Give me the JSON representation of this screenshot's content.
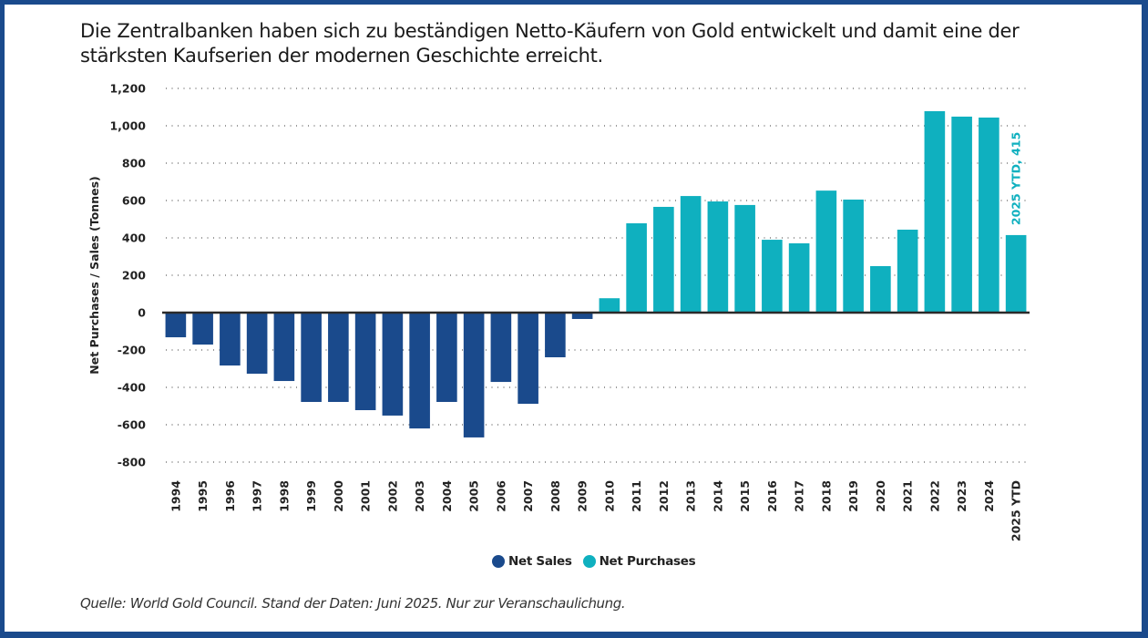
{
  "title": "Die Zentralbanken haben sich zu beständigen Netto-Käufern von Gold entwickelt und damit eine der stärksten Kaufserien der modernen Geschichte erreicht.",
  "source": "Quelle: World Gold Council. Stand der Daten: Juni 2025. Nur zur Veranschaulichung.",
  "colors": {
    "net_sales": "#1a4a8c",
    "net_purchases": "#0fb0bf",
    "frame": "#1a4a8c",
    "annotation": "#0fb0bf"
  },
  "legend": [
    {
      "label": "Net Sales",
      "color_key": "net_sales"
    },
    {
      "label": "Net Purchases",
      "color_key": "net_purchases"
    }
  ],
  "chart_data": {
    "type": "bar",
    "title": "Die Zentralbanken haben sich zu beständigen Netto-Käufern von Gold entwickelt und damit eine der stärksten Kaufserien der modernen Geschichte erreicht.",
    "xlabel": "",
    "ylabel": "Net Purchases / Sales (Tonnes)",
    "ylim": [
      -800,
      1200
    ],
    "yticks": [
      1200,
      1000,
      800,
      600,
      400,
      200,
      0,
      -200,
      -400,
      -600,
      -800
    ],
    "ytick_labels": [
      "1,200",
      "1,000",
      "800",
      "600",
      "400",
      "200",
      "0",
      "-200",
      "-400",
      "-600",
      "-800"
    ],
    "grid": true,
    "legend_position": "bottom-center",
    "categories": [
      "1994",
      "1995",
      "1996",
      "1997",
      "1998",
      "1999",
      "2000",
      "2001",
      "2002",
      "2003",
      "2004",
      "2005",
      "2006",
      "2007",
      "2008",
      "2009",
      "2010",
      "2011",
      "2012",
      "2013",
      "2014",
      "2015",
      "2016",
      "2017",
      "2018",
      "2019",
      "2020",
      "2021",
      "2022",
      "2023",
      "2024",
      "2025 YTD"
    ],
    "values": [
      -132,
      -171,
      -283,
      -327,
      -366,
      -478,
      -478,
      -522,
      -551,
      -620,
      -478,
      -668,
      -371,
      -488,
      -239,
      -34,
      77,
      478,
      566,
      624,
      595,
      576,
      390,
      371,
      653,
      605,
      249,
      444,
      1078,
      1049,
      1044,
      415
    ],
    "series": [
      {
        "name": "Net Sales",
        "rule": "value < 0"
      },
      {
        "name": "Net Purchases",
        "rule": "value >= 0"
      }
    ],
    "annotations": [
      {
        "category": "2025 YTD",
        "text": "2025 YTD, 415"
      }
    ]
  }
}
